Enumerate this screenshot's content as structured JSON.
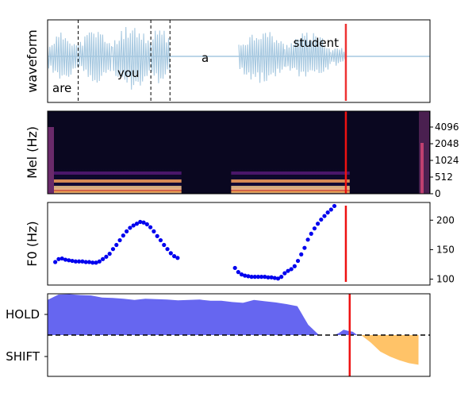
{
  "chart_data": [
    {
      "type": "line",
      "ylabel": "waveform",
      "words": [
        {
          "text": "are",
          "t": 0.0
        },
        {
          "text": "you",
          "t": 0.17
        },
        {
          "text": "a",
          "t": 0.39
        },
        {
          "text": "student",
          "t": 0.63
        }
      ],
      "word_boundaries": [
        0.08,
        0.27,
        0.32
      ],
      "segments": [
        {
          "start": 0.0,
          "end": 0.08,
          "amp": 0.62
        },
        {
          "start": 0.08,
          "end": 0.17,
          "amp": 0.7
        },
        {
          "start": 0.17,
          "end": 0.27,
          "amp": 0.85
        },
        {
          "start": 0.27,
          "end": 0.32,
          "amp": 0.82
        },
        {
          "start": 0.5,
          "end": 0.62,
          "amp": 0.7
        },
        {
          "start": 0.62,
          "end": 0.74,
          "amp": 0.62
        },
        {
          "start": 0.74,
          "end": 0.78,
          "amp": 0.25
        }
      ],
      "cursor": 0.78,
      "colors": {
        "wave": "#a6c8e0",
        "cursor": "#ee3333"
      }
    },
    {
      "type": "heatmap",
      "ylabel": "Mel (Hz)",
      "yticks": [
        "0",
        "512",
        "1024",
        "2048",
        "4096"
      ],
      "cursor": 0.78,
      "colors": {
        "background": "#0a0720",
        "cursor": "#ee1111"
      }
    },
    {
      "type": "scatter",
      "ylabel": "F0 (Hz)",
      "yticks": [
        100,
        150,
        200
      ],
      "ylim": [
        90,
        230
      ],
      "segment1": {
        "t0": 0.02,
        "t1": 0.34,
        "values": [
          129,
          134,
          135,
          133,
          132,
          131,
          130,
          130,
          130,
          129,
          129,
          128,
          128,
          130,
          134,
          138,
          143,
          151,
          158,
          166,
          174,
          181,
          187,
          191,
          194,
          197,
          196,
          193,
          188,
          181,
          173,
          166,
          158,
          151,
          144,
          139,
          136
        ]
      },
      "segment2": {
        "t0": 0.49,
        "t1": 0.75,
        "values": [
          119,
          112,
          108,
          106,
          105,
          104,
          104,
          104,
          104,
          104,
          103,
          103,
          102,
          101,
          104,
          110,
          114,
          117,
          122,
          131,
          142,
          153,
          167,
          177,
          186,
          194,
          201,
          207,
          213,
          218,
          224
        ]
      },
      "cursor": 0.78,
      "colors": {
        "points": "#0000ee",
        "cursor": "#ee1111"
      }
    },
    {
      "type": "area",
      "yticks": [
        "HOLD",
        "SHIFT"
      ],
      "hold": [
        0.85,
        0.98,
        0.99,
        0.97,
        0.96,
        0.91,
        0.9,
        0.88,
        0.85,
        0.88,
        0.87,
        0.86,
        0.84,
        0.85,
        0.86,
        0.83,
        0.83,
        0.8,
        0.78,
        0.85,
        0.82,
        0.79,
        0.75,
        0.7,
        0.25,
        0.0
      ],
      "hold_t1": 0.71,
      "blip": [
        0.0,
        0.05,
        0.13,
        0.1,
        0.08,
        0.0
      ],
      "blip_t0": 0.75,
      "blip_t1": 0.81,
      "shift": [
        0.0,
        -0.18,
        -0.4,
        -0.52,
        -0.61,
        -0.68,
        -0.72
      ],
      "shift_t0": 0.82,
      "shift_t1": 0.97,
      "cursor": 0.79,
      "colors": {
        "hold": "#5555ee",
        "shift": "#ffb84d",
        "cursor": "#ee1111"
      }
    }
  ]
}
